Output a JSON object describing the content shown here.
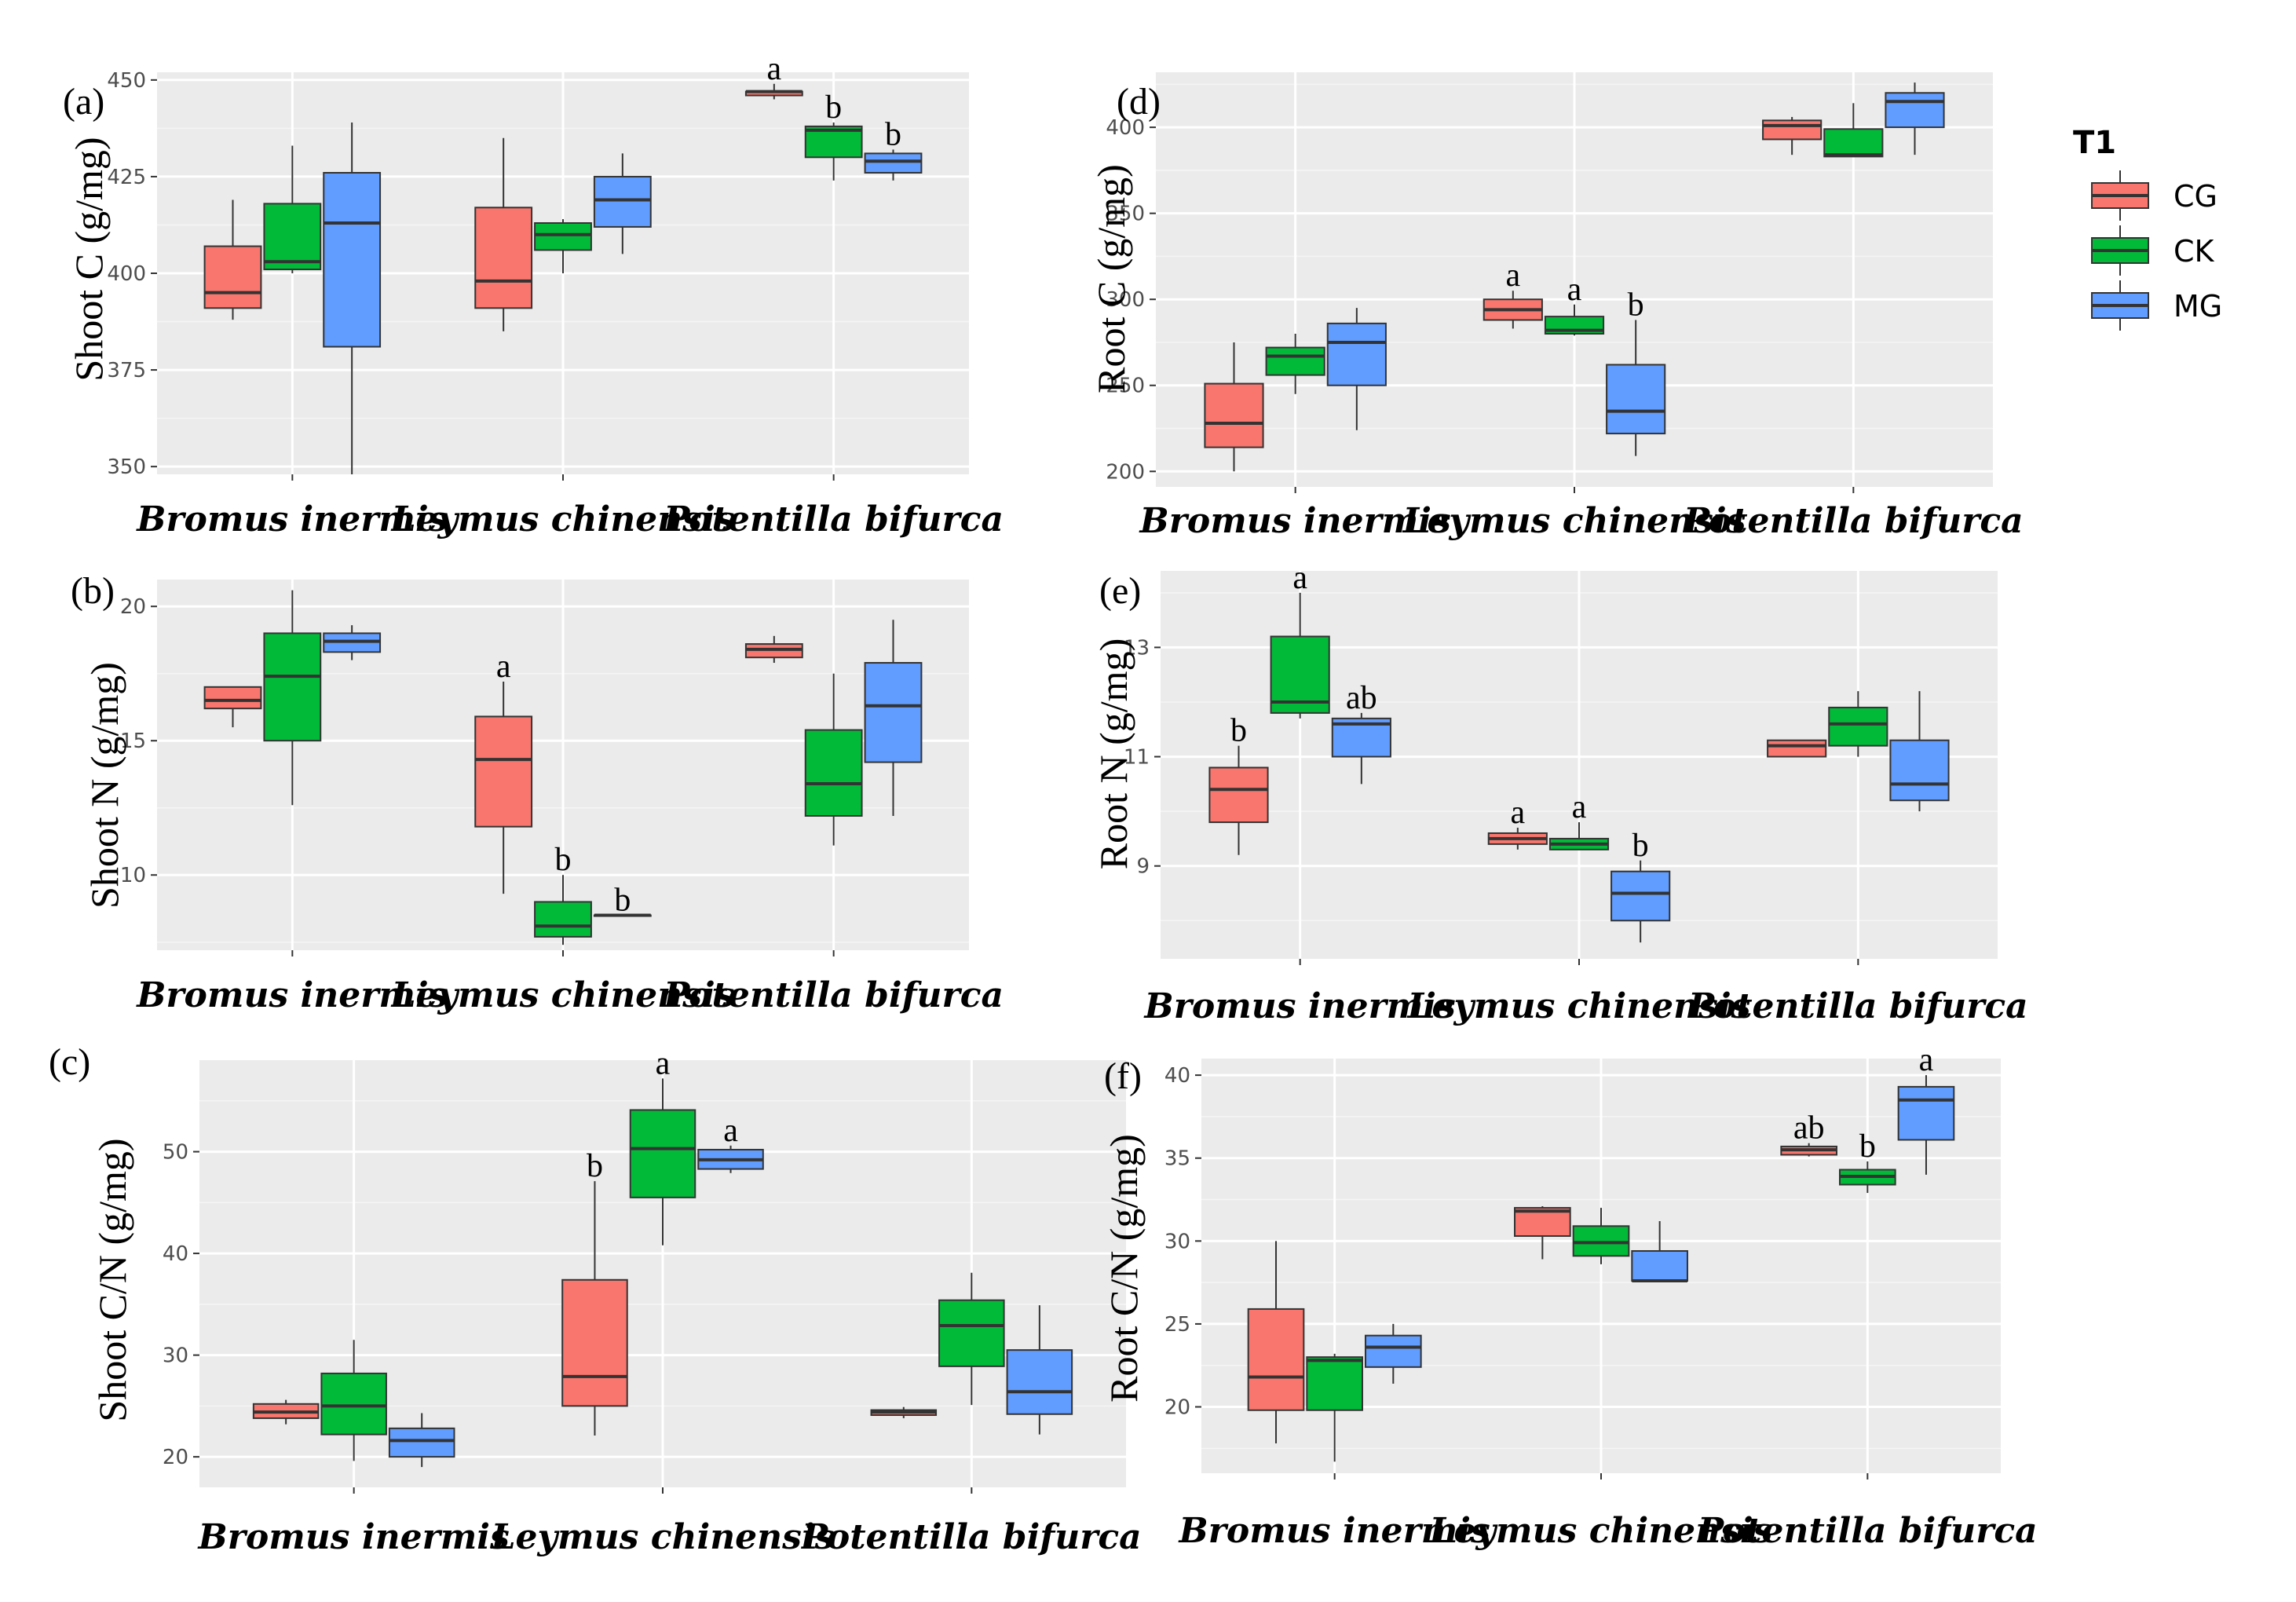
{
  "legend": {
    "title": "T1",
    "items": [
      {
        "label": "CG",
        "color": "#f8766d"
      },
      {
        "label": "CK",
        "color": "#00ba38"
      },
      {
        "label": "MG",
        "color": "#619cff"
      }
    ]
  },
  "chart_data": [
    {
      "id": "a",
      "type": "boxplot",
      "tag": "(a)",
      "ylabel": "Shoot C (g/mg)",
      "categories": [
        "Bromus inermis",
        "Leymus chinensis",
        "Potentilla bifurca"
      ],
      "ylim": [
        348,
        452
      ],
      "yticks": [
        350,
        375,
        400,
        425,
        450
      ],
      "series_order": [
        "CG",
        "CK",
        "MG"
      ],
      "boxes": [
        [
          {
            "min": 388,
            "q1": 391,
            "median": 395,
            "q3": 407,
            "max": 419,
            "sig": ""
          },
          {
            "min": 400,
            "q1": 401,
            "median": 403,
            "q3": 418,
            "max": 433,
            "sig": ""
          },
          {
            "min": 348,
            "q1": 381,
            "median": 413,
            "q3": 426,
            "max": 439,
            "sig": ""
          }
        ],
        [
          {
            "min": 385,
            "q1": 391,
            "median": 398,
            "q3": 417,
            "max": 435,
            "sig": ""
          },
          {
            "min": 400,
            "q1": 406,
            "median": 410,
            "q3": 413,
            "max": 414,
            "sig": ""
          },
          {
            "min": 405,
            "q1": 412,
            "median": 419,
            "q3": 425,
            "max": 431,
            "sig": ""
          }
        ],
        [
          {
            "min": 445,
            "q1": 446,
            "median": 447,
            "q3": 447,
            "max": 449,
            "sig": "a"
          },
          {
            "min": 424,
            "q1": 430,
            "median": 437,
            "q3": 438,
            "max": 439,
            "sig": "b"
          },
          {
            "min": 424,
            "q1": 426,
            "median": 429,
            "q3": 431,
            "max": 432,
            "sig": "b"
          }
        ]
      ]
    },
    {
      "id": "b",
      "type": "boxplot",
      "tag": "(b)",
      "ylabel": "Shoot N (g/mg)",
      "categories": [
        "Bromus inermis",
        "Leymus chinensis",
        "Potentilla bifurca"
      ],
      "ylim": [
        7.2,
        21.0
      ],
      "yticks": [
        10,
        15,
        20
      ],
      "series_order": [
        "CG",
        "CK",
        "MG"
      ],
      "boxes": [
        [
          {
            "min": 15.5,
            "q1": 16.2,
            "median": 16.5,
            "q3": 17.0,
            "max": 17.0,
            "sig": ""
          },
          {
            "min": 12.6,
            "q1": 15.0,
            "median": 17.4,
            "q3": 19.0,
            "max": 20.6,
            "sig": ""
          },
          {
            "min": 18.0,
            "q1": 18.3,
            "median": 18.7,
            "q3": 19.0,
            "max": 19.3,
            "sig": ""
          }
        ],
        [
          {
            "min": 9.3,
            "q1": 11.8,
            "median": 14.3,
            "q3": 15.9,
            "max": 17.2,
            "sig": "a"
          },
          {
            "min": 7.4,
            "q1": 7.7,
            "median": 8.1,
            "q3": 9.0,
            "max": 10.0,
            "sig": "b"
          },
          {
            "min": 8.5,
            "q1": 8.5,
            "median": 8.5,
            "q3": 8.5,
            "max": 8.5,
            "sig": "b"
          }
        ],
        [
          {
            "min": 17.9,
            "q1": 18.1,
            "median": 18.4,
            "q3": 18.6,
            "max": 18.9,
            "sig": ""
          },
          {
            "min": 11.1,
            "q1": 12.2,
            "median": 13.4,
            "q3": 15.4,
            "max": 17.5,
            "sig": ""
          },
          {
            "min": 12.2,
            "q1": 14.2,
            "median": 16.3,
            "q3": 17.9,
            "max": 19.5,
            "sig": ""
          }
        ]
      ]
    },
    {
      "id": "c",
      "type": "boxplot",
      "tag": "(c)",
      "ylabel": "Shoot C/N (g/mg)",
      "categories": [
        "Bromus inermis",
        "Leymus chinensis",
        "Potentilla bifurca"
      ],
      "ylim": [
        17,
        59
      ],
      "yticks": [
        20,
        30,
        40,
        50
      ],
      "series_order": [
        "CG",
        "CK",
        "MG"
      ],
      "boxes": [
        [
          {
            "min": 23.2,
            "q1": 23.8,
            "median": 24.4,
            "q3": 25.2,
            "max": 25.6,
            "sig": ""
          },
          {
            "min": 19.6,
            "q1": 22.2,
            "median": 25.0,
            "q3": 28.2,
            "max": 31.5,
            "sig": ""
          },
          {
            "min": 19.0,
            "q1": 20.0,
            "median": 21.6,
            "q3": 22.8,
            "max": 24.3,
            "sig": ""
          }
        ],
        [
          {
            "min": 22.1,
            "q1": 25.0,
            "median": 27.9,
            "q3": 37.4,
            "max": 47.1,
            "sig": "b"
          },
          {
            "min": 40.8,
            "q1": 45.5,
            "median": 50.3,
            "q3": 54.1,
            "max": 57.2,
            "sig": "a"
          },
          {
            "min": 47.9,
            "q1": 48.3,
            "median": 49.2,
            "q3": 50.2,
            "max": 50.6,
            "sig": "a"
          }
        ],
        [
          {
            "min": 23.8,
            "q1": 24.1,
            "median": 24.4,
            "q3": 24.6,
            "max": 24.9,
            "sig": ""
          },
          {
            "min": 25.1,
            "q1": 28.9,
            "median": 32.9,
            "q3": 35.4,
            "max": 38.1,
            "sig": ""
          },
          {
            "min": 22.2,
            "q1": 24.2,
            "median": 26.4,
            "q3": 30.5,
            "max": 34.9,
            "sig": ""
          }
        ]
      ]
    },
    {
      "id": "d",
      "type": "boxplot",
      "tag": "(d)",
      "ylabel": "Root C (g/mg)",
      "categories": [
        "Bromus inermis",
        "Leymus chinensis",
        "Potentilla bifurca"
      ],
      "ylim": [
        191,
        432
      ],
      "yticks": [
        200,
        250,
        300,
        350,
        400
      ],
      "series_order": [
        "CG",
        "CK",
        "MG"
      ],
      "boxes": [
        [
          {
            "min": 200,
            "q1": 214,
            "median": 228,
            "q3": 251,
            "max": 275,
            "sig": ""
          },
          {
            "min": 245,
            "q1": 256,
            "median": 267,
            "q3": 272,
            "max": 280,
            "sig": ""
          },
          {
            "min": 224,
            "q1": 250,
            "median": 275,
            "q3": 286,
            "max": 295,
            "sig": ""
          }
        ],
        [
          {
            "min": 283,
            "q1": 288,
            "median": 294,
            "q3": 300,
            "max": 305,
            "sig": "a"
          },
          {
            "min": 279,
            "q1": 280,
            "median": 282,
            "q3": 290,
            "max": 297,
            "sig": "a"
          },
          {
            "min": 209,
            "q1": 222,
            "median": 235,
            "q3": 262,
            "max": 288,
            "sig": "b"
          }
        ],
        [
          {
            "min": 384,
            "q1": 393,
            "median": 401,
            "q3": 404,
            "max": 406,
            "sig": ""
          },
          {
            "min": 383,
            "q1": 383,
            "median": 384,
            "q3": 399,
            "max": 414,
            "sig": ""
          },
          {
            "min": 384,
            "q1": 400,
            "median": 415,
            "q3": 420,
            "max": 426,
            "sig": ""
          }
        ]
      ]
    },
    {
      "id": "e",
      "type": "boxplot",
      "tag": "(e)",
      "ylabel": "Root N (g/mg)",
      "categories": [
        "Bromus inermis",
        "Leymus chinensis",
        "Potentilla bifurca"
      ],
      "ylim": [
        7.3,
        14.4
      ],
      "yticks": [
        9,
        11,
        13
      ],
      "series_order": [
        "CG",
        "CK",
        "MG"
      ],
      "boxes": [
        [
          {
            "min": 9.2,
            "q1": 9.8,
            "median": 10.4,
            "q3": 10.8,
            "max": 11.2,
            "sig": "b"
          },
          {
            "min": 11.7,
            "q1": 11.8,
            "median": 12.0,
            "q3": 13.2,
            "max": 14.0,
            "sig": "a"
          },
          {
            "min": 10.5,
            "q1": 11.0,
            "median": 11.6,
            "q3": 11.7,
            "max": 11.8,
            "sig": "ab"
          }
        ],
        [
          {
            "min": 9.3,
            "q1": 9.4,
            "median": 9.5,
            "q3": 9.6,
            "max": 9.7,
            "sig": "a"
          },
          {
            "min": 9.3,
            "q1": 9.3,
            "median": 9.4,
            "q3": 9.5,
            "max": 9.8,
            "sig": "a"
          },
          {
            "min": 7.6,
            "q1": 8.0,
            "median": 8.5,
            "q3": 8.9,
            "max": 9.1,
            "sig": "b"
          }
        ],
        [
          {
            "min": 11.0,
            "q1": 11.0,
            "median": 11.2,
            "q3": 11.3,
            "max": 11.3,
            "sig": ""
          },
          {
            "min": 11.0,
            "q1": 11.2,
            "median": 11.6,
            "q3": 11.9,
            "max": 12.2,
            "sig": ""
          },
          {
            "min": 10.0,
            "q1": 10.2,
            "median": 10.5,
            "q3": 11.3,
            "max": 12.2,
            "sig": ""
          }
        ]
      ]
    },
    {
      "id": "f",
      "type": "boxplot",
      "tag": "(f)",
      "ylabel": "Root C/N (g/mg)",
      "categories": [
        "Bromus inermis",
        "Leymus chinensis",
        "Potentilla bifurca"
      ],
      "ylim": [
        16,
        41
      ],
      "yticks": [
        20,
        25,
        30,
        35,
        40
      ],
      "series_order": [
        "CG",
        "CK",
        "MG"
      ],
      "boxes": [
        [
          {
            "min": 17.8,
            "q1": 19.8,
            "median": 21.8,
            "q3": 25.9,
            "max": 30.0,
            "sig": ""
          },
          {
            "min": 16.7,
            "q1": 19.8,
            "median": 22.8,
            "q3": 23.0,
            "max": 23.2,
            "sig": ""
          },
          {
            "min": 21.4,
            "q1": 22.4,
            "median": 23.6,
            "q3": 24.3,
            "max": 25.0,
            "sig": ""
          }
        ],
        [
          {
            "min": 28.9,
            "q1": 30.3,
            "median": 31.8,
            "q3": 32.0,
            "max": 32.1,
            "sig": ""
          },
          {
            "min": 28.6,
            "q1": 29.1,
            "median": 29.9,
            "q3": 30.9,
            "max": 32.0,
            "sig": ""
          },
          {
            "min": 27.6,
            "q1": 27.6,
            "median": 27.6,
            "q3": 29.4,
            "max": 31.2,
            "sig": ""
          }
        ],
        [
          {
            "min": 35.1,
            "q1": 35.2,
            "median": 35.5,
            "q3": 35.7,
            "max": 35.9,
            "sig": "ab"
          },
          {
            "min": 32.9,
            "q1": 33.4,
            "median": 33.9,
            "q3": 34.3,
            "max": 34.8,
            "sig": "b"
          },
          {
            "min": 34.0,
            "q1": 36.1,
            "median": 38.5,
            "q3": 39.3,
            "max": 40.0,
            "sig": "a"
          }
        ]
      ]
    }
  ]
}
